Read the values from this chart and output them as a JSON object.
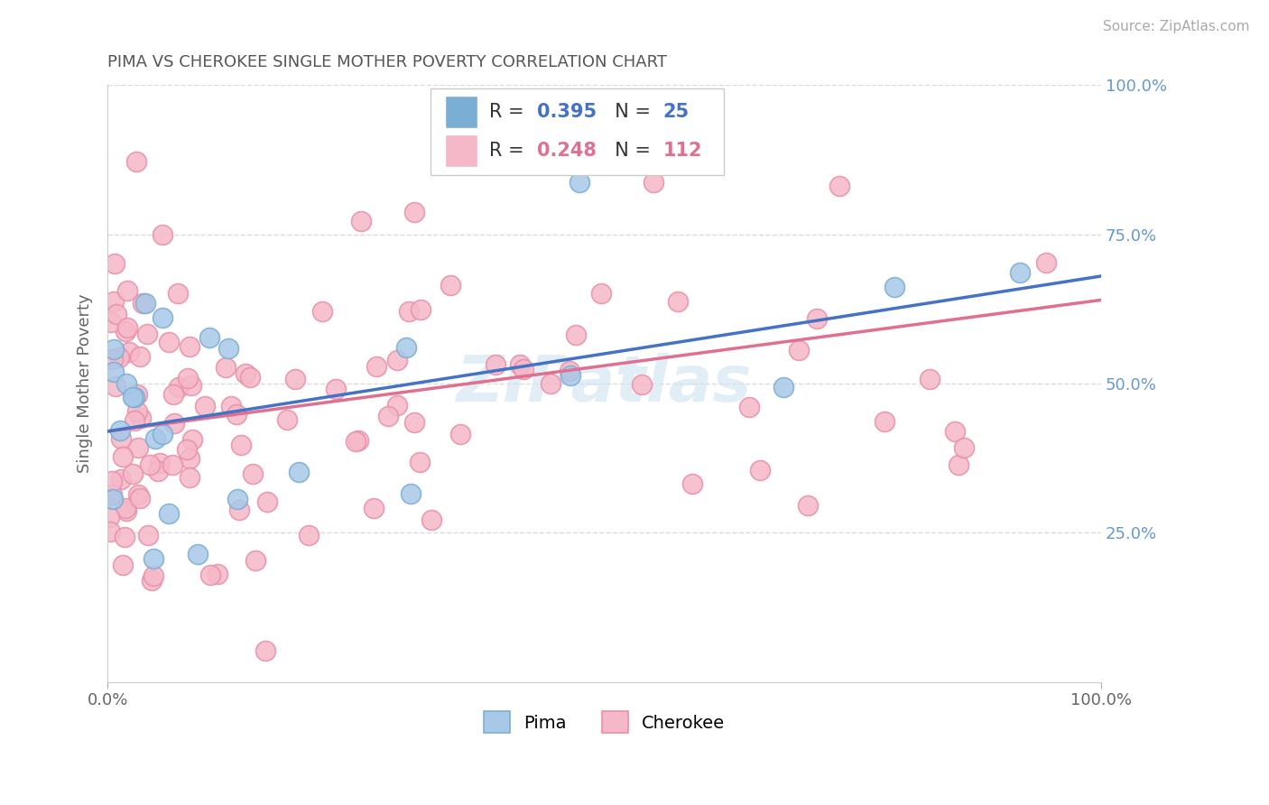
{
  "title": "PIMA VS CHEROKEE SINGLE MOTHER POVERTY CORRELATION CHART",
  "source_text": "Source: ZipAtlas.com",
  "ylabel": "Single Mother Poverty",
  "xlim": [
    0,
    1
  ],
  "ylim": [
    0,
    1
  ],
  "pima_R": 0.395,
  "pima_N": 25,
  "cherokee_R": 0.248,
  "cherokee_N": 112,
  "pima_color": "#a8c8e8",
  "pima_edge_color": "#7aaed4",
  "cherokee_color": "#f5b8c8",
  "cherokee_edge_color": "#e890a8",
  "pima_line_color": "#4472c4",
  "cherokee_line_color": "#e07090",
  "background_color": "#ffffff",
  "grid_color": "#cccccc",
  "title_color": "#555555",
  "source_color": "#aaaaaa",
  "right_tick_color": "#6699cc",
  "watermark_color": "#d0e4f0",
  "watermark_text": "ZIPatlas",
  "legend_pima_color": "#7aaed4",
  "legend_cherokee_color": "#f5b8c8",
  "legend_blue_text": "#4472c4",
  "legend_pink_text": "#e07090"
}
